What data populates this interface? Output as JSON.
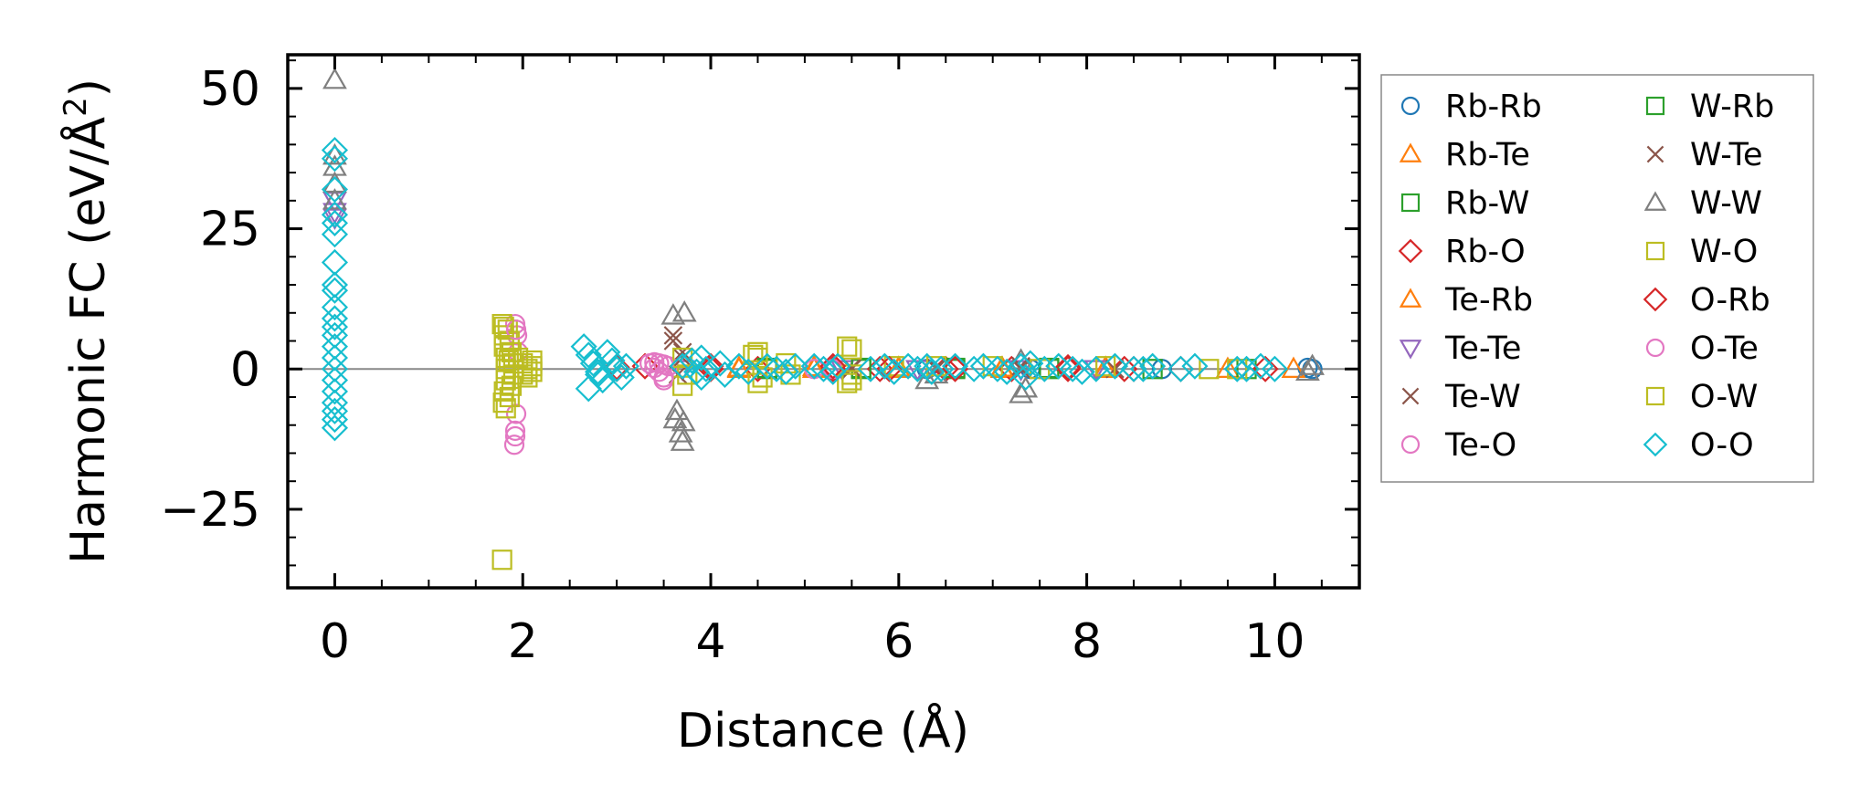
{
  "chart_data": {
    "type": "scatter",
    "xlabel": "Distance (Å)",
    "ylabel": "Harmonic FC (eV/Å²)",
    "ylabel_parts": {
      "main": "Harmonic FC (eV/Å",
      "sup": "2",
      "close": ")"
    },
    "xlim": [
      -0.5,
      10.9
    ],
    "ylim": [
      -39,
      56
    ],
    "xticks": [
      0,
      2,
      4,
      6,
      8,
      10
    ],
    "xtick_labels": [
      "0",
      "2",
      "4",
      "6",
      "8",
      "10"
    ],
    "yticks": [
      -25,
      0,
      25,
      50
    ],
    "ytick_labels": [
      "−25",
      "0",
      "25",
      "50"
    ],
    "zero_line": true,
    "grid": false,
    "legend_placement": "outside right",
    "series": [
      {
        "name": "Rb-Rb",
        "marker": "circle",
        "color": "#1f77b4",
        "points": [
          [
            10.4,
            0
          ],
          [
            10.35,
            0.2
          ],
          [
            9.6,
            0
          ],
          [
            8.8,
            0
          ],
          [
            7.4,
            0
          ],
          [
            6.3,
            0
          ]
        ]
      },
      {
        "name": "Rb-Te",
        "marker": "triangle-up",
        "color": "#ff7f0e",
        "points": [
          [
            4.3,
            0
          ],
          [
            5.1,
            0.3
          ],
          [
            6.0,
            0
          ],
          [
            7.1,
            0
          ],
          [
            8.2,
            0
          ],
          [
            9.5,
            0
          ],
          [
            10.2,
            0
          ]
        ]
      },
      {
        "name": "Rb-W",
        "marker": "square",
        "color": "#2ca02c",
        "points": [
          [
            4.6,
            0
          ],
          [
            5.6,
            0
          ],
          [
            6.6,
            0
          ],
          [
            7.6,
            0
          ],
          [
            8.7,
            0
          ],
          [
            9.7,
            0
          ]
        ]
      },
      {
        "name": "Rb-O",
        "marker": "diamond",
        "color": "#d62728",
        "points": [
          [
            3.0,
            0
          ],
          [
            3.3,
            0.5
          ],
          [
            4.0,
            0
          ],
          [
            4.5,
            0
          ],
          [
            5.3,
            0
          ],
          [
            5.8,
            0
          ],
          [
            6.5,
            0
          ],
          [
            7.2,
            0
          ],
          [
            7.8,
            0
          ],
          [
            8.4,
            0
          ],
          [
            9.0,
            0
          ],
          [
            9.9,
            0
          ]
        ]
      },
      {
        "name": "Te-Rb",
        "marker": "triangle-up",
        "color": "#ff7f0e",
        "points": [
          [
            4.3,
            0.2
          ],
          [
            5.1,
            0
          ],
          [
            6.0,
            0.2
          ],
          [
            7.1,
            0.2
          ],
          [
            8.2,
            0.2
          ]
        ]
      },
      {
        "name": "Te-Te",
        "marker": "triangle-down",
        "color": "#9467bd",
        "points": [
          [
            0,
            30
          ],
          [
            0,
            28
          ],
          [
            0,
            27
          ],
          [
            3.7,
            0
          ],
          [
            5.4,
            0
          ],
          [
            6.2,
            0
          ],
          [
            7.3,
            0
          ],
          [
            8.1,
            0
          ]
        ]
      },
      {
        "name": "Te-W",
        "marker": "x",
        "color": "#8c564b",
        "points": [
          [
            3.6,
            6
          ],
          [
            3.7,
            3
          ],
          [
            3.65,
            -1
          ],
          [
            5.5,
            0
          ],
          [
            6.4,
            0
          ],
          [
            7.3,
            0.5
          ],
          [
            8.3,
            0
          ]
        ]
      },
      {
        "name": "Te-O",
        "marker": "circle",
        "color": "#e377c2",
        "points": [
          [
            1.92,
            8
          ],
          [
            1.94,
            6
          ],
          [
            1.95,
            3
          ],
          [
            1.93,
            -8
          ],
          [
            1.92,
            -11
          ],
          [
            1.91,
            -13.5
          ],
          [
            3.35,
            1
          ],
          [
            3.4,
            0.2
          ],
          [
            3.45,
            -0.5
          ],
          [
            3.5,
            -2
          ],
          [
            3.55,
            0.5
          ],
          [
            3.45,
            1
          ],
          [
            5.1,
            0
          ],
          [
            5.3,
            0
          ]
        ]
      },
      {
        "name": "W-Rb",
        "marker": "square",
        "color": "#2ca02c",
        "points": [
          [
            4.6,
            0.2
          ],
          [
            5.6,
            0.2
          ],
          [
            6.6,
            0.2
          ],
          [
            7.6,
            0.2
          ]
        ]
      },
      {
        "name": "W-Te",
        "marker": "x",
        "color": "#8c564b",
        "points": [
          [
            3.6,
            5
          ],
          [
            3.7,
            2
          ],
          [
            5.5,
            0.2
          ],
          [
            6.4,
            0.2
          ],
          [
            7.3,
            0
          ]
        ]
      },
      {
        "name": "W-W",
        "marker": "triangle-up",
        "color": "#7f7f7f",
        "points": [
          [
            0,
            51.5
          ],
          [
            0,
            38
          ],
          [
            0,
            36
          ],
          [
            0,
            33
          ],
          [
            0,
            30
          ],
          [
            3.6,
            9.5
          ],
          [
            3.72,
            10
          ],
          [
            3.62,
            -9
          ],
          [
            3.68,
            -11.5
          ],
          [
            3.7,
            -13
          ],
          [
            3.64,
            -7.5
          ],
          [
            3.71,
            -9.5
          ],
          [
            6.3,
            -2
          ],
          [
            6.4,
            -1
          ],
          [
            7.3,
            -4.5
          ],
          [
            7.35,
            -3.5
          ],
          [
            7.3,
            1.5
          ],
          [
            10.35,
            -0.5
          ],
          [
            10.4,
            0.5
          ]
        ]
      },
      {
        "name": "W-O",
        "marker": "square",
        "color": "#bcbd22",
        "points": [
          [
            1.78,
            -34
          ],
          [
            1.78,
            8
          ],
          [
            1.8,
            6
          ],
          [
            1.8,
            4
          ],
          [
            1.82,
            2
          ],
          [
            1.82,
            0
          ],
          [
            1.82,
            -2
          ],
          [
            1.8,
            -4
          ],
          [
            1.79,
            -6
          ],
          [
            1.84,
            7
          ],
          [
            1.86,
            5
          ],
          [
            1.88,
            3
          ],
          [
            1.9,
            1
          ],
          [
            1.9,
            -1
          ],
          [
            1.88,
            -3
          ],
          [
            1.86,
            -5
          ],
          [
            1.95,
            2
          ],
          [
            2.0,
            1
          ],
          [
            2.05,
            0
          ],
          [
            2.0,
            -1
          ],
          [
            2.1,
            0.5
          ],
          [
            2.1,
            -0.5
          ],
          [
            3.7,
            2
          ],
          [
            3.75,
            -1
          ],
          [
            3.7,
            -3
          ],
          [
            4.45,
            2.5
          ],
          [
            4.5,
            3
          ],
          [
            4.5,
            -2.5
          ],
          [
            4.55,
            -1.5
          ],
          [
            4.8,
            1
          ],
          [
            4.85,
            -1
          ],
          [
            5.45,
            4
          ],
          [
            5.5,
            3.5
          ],
          [
            5.45,
            -2.5
          ],
          [
            5.5,
            -1
          ],
          [
            5.95,
            0.5
          ],
          [
            6.4,
            0.5
          ],
          [
            7.0,
            0.5
          ],
          [
            7.5,
            0
          ],
          [
            8.2,
            0.5
          ],
          [
            9.3,
            0
          ],
          [
            9.6,
            0
          ]
        ]
      },
      {
        "name": "O-Rb",
        "marker": "diamond",
        "color": "#d62728",
        "points": [
          [
            3.0,
            0.3
          ],
          [
            4.0,
            0.5
          ],
          [
            5.3,
            0.5
          ],
          [
            5.9,
            0
          ],
          [
            6.6,
            0
          ],
          [
            7.8,
            0.3
          ],
          [
            8.5,
            0
          ]
        ]
      },
      {
        "name": "O-Te",
        "marker": "circle",
        "color": "#e377c2",
        "points": [
          [
            1.93,
            7
          ],
          [
            1.92,
            -12
          ],
          [
            3.4,
            1.2
          ],
          [
            3.5,
            -1.5
          ],
          [
            3.5,
            0.8
          ]
        ]
      },
      {
        "name": "O-W",
        "marker": "square",
        "color": "#bcbd22",
        "points": [
          [
            1.8,
            7.5
          ],
          [
            1.82,
            -7
          ],
          [
            1.85,
            1.5
          ],
          [
            2.05,
            -1.5
          ],
          [
            2.1,
            1.5
          ],
          [
            4.5,
            2
          ],
          [
            5.5,
            -2
          ]
        ]
      },
      {
        "name": "O-O",
        "marker": "diamond",
        "color": "#17becf",
        "points": [
          [
            0,
            39
          ],
          [
            0,
            37.5
          ],
          [
            0,
            32
          ],
          [
            0,
            27.5
          ],
          [
            0,
            26
          ],
          [
            0,
            24
          ],
          [
            0,
            19
          ],
          [
            0,
            15
          ],
          [
            0,
            14
          ],
          [
            0,
            11
          ],
          [
            0,
            9
          ],
          [
            0,
            7.5
          ],
          [
            0,
            6
          ],
          [
            0,
            4
          ],
          [
            0,
            2
          ],
          [
            0,
            0
          ],
          [
            0,
            -2
          ],
          [
            0,
            -4
          ],
          [
            0,
            -6
          ],
          [
            0,
            -7.5
          ],
          [
            0,
            -9
          ],
          [
            0,
            -10.5
          ],
          [
            2.65,
            4
          ],
          [
            2.7,
            2.5
          ],
          [
            2.75,
            1
          ],
          [
            2.8,
            -0.5
          ],
          [
            2.85,
            -2
          ],
          [
            2.7,
            -3.5
          ],
          [
            2.9,
            3
          ],
          [
            2.95,
            1.5
          ],
          [
            3.0,
            0
          ],
          [
            3.05,
            -1.5
          ],
          [
            3.1,
            0.5
          ],
          [
            2.8,
            -1
          ],
          [
            3.7,
            0.5
          ],
          [
            3.8,
            1.5
          ],
          [
            3.85,
            -0.5
          ],
          [
            3.9,
            2
          ],
          [
            3.9,
            -1.5
          ],
          [
            3.95,
            0
          ],
          [
            4.1,
            1
          ],
          [
            4.15,
            -1
          ],
          [
            4.3,
            0.5
          ],
          [
            4.4,
            -0.5
          ],
          [
            4.6,
            0.5
          ],
          [
            4.7,
            0
          ],
          [
            4.8,
            -0.5
          ],
          [
            4.9,
            0.5
          ],
          [
            5.1,
            0.5
          ],
          [
            5.2,
            0
          ],
          [
            5.3,
            -0.5
          ],
          [
            5.35,
            0.5
          ],
          [
            5.7,
            0
          ],
          [
            5.85,
            0.5
          ],
          [
            5.95,
            -0.5
          ],
          [
            6.1,
            0.5
          ],
          [
            6.2,
            0
          ],
          [
            6.3,
            0.5
          ],
          [
            6.35,
            -0.5
          ],
          [
            6.45,
            0
          ],
          [
            6.6,
            0.5
          ],
          [
            6.8,
            0
          ],
          [
            6.9,
            0.5
          ],
          [
            7.05,
            0
          ],
          [
            7.15,
            -0.5
          ],
          [
            7.3,
            0.5
          ],
          [
            7.35,
            -1.5
          ],
          [
            7.4,
            1
          ],
          [
            7.55,
            0
          ],
          [
            7.7,
            0.5
          ],
          [
            7.85,
            0
          ],
          [
            7.95,
            -0.5
          ],
          [
            8.1,
            0
          ],
          [
            8.3,
            0.5
          ],
          [
            8.5,
            0
          ],
          [
            8.6,
            0
          ],
          [
            8.7,
            0.5
          ],
          [
            9.0,
            0
          ],
          [
            9.15,
            0.5
          ],
          [
            9.6,
            0
          ],
          [
            9.7,
            0
          ],
          [
            9.85,
            0.5
          ],
          [
            10.0,
            0
          ]
        ]
      }
    ]
  }
}
